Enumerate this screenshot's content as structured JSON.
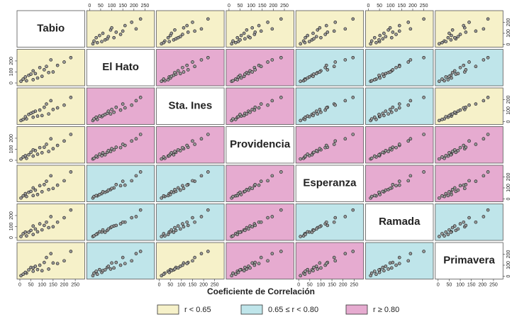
{
  "chart_data": {
    "type": "scatter-matrix",
    "x_label": "Coeficiente de Correlación",
    "xlim": [
      0,
      280
    ],
    "ylim": [
      0,
      280
    ],
    "xticks": [
      0,
      50,
      100,
      150,
      200,
      250
    ],
    "yticks": [
      0,
      100,
      200
    ],
    "point_color": "#9a9a9a",
    "legend": [
      {
        "name": "r < 0.65",
        "color": "#f6f1c9"
      },
      {
        "name": "0.65 ≤ r < 0.80",
        "color": "#bfe5ea"
      },
      {
        "name": "r ≥ 0.80",
        "color": "#e6abd0"
      }
    ],
    "classes": [
      [
        null,
        0,
        0,
        0,
        0,
        0,
        0
      ],
      [
        0,
        null,
        2,
        2,
        1,
        1,
        1
      ],
      [
        0,
        2,
        null,
        2,
        1,
        1,
        0
      ],
      [
        0,
        2,
        2,
        null,
        2,
        2,
        2
      ],
      [
        0,
        1,
        1,
        2,
        null,
        2,
        2
      ],
      [
        0,
        1,
        1,
        2,
        1,
        null,
        1
      ],
      [
        0,
        1,
        0,
        2,
        2,
        1,
        null
      ]
    ],
    "variables": [
      {
        "name": "Tabio",
        "values": [
          5,
          30,
          15,
          60,
          25,
          80,
          40,
          100,
          50,
          130,
          70,
          60,
          150,
          90,
          110,
          170,
          120,
          200,
          140,
          230
        ]
      },
      {
        "name": "El Hato",
        "values": [
          15,
          20,
          35,
          30,
          55,
          45,
          70,
          60,
          80,
          95,
          85,
          110,
          100,
          140,
          120,
          160,
          150,
          190,
          210,
          230
        ]
      },
      {
        "name": "Sta. Ines",
        "values": [
          10,
          25,
          20,
          40,
          45,
          50,
          65,
          55,
          75,
          70,
          95,
          85,
          110,
          105,
          130,
          125,
          160,
          150,
          190,
          220
        ]
      },
      {
        "name": "Providencia",
        "values": [
          12,
          18,
          30,
          38,
          42,
          55,
          50,
          68,
          72,
          80,
          88,
          95,
          105,
          115,
          118,
          135,
          145,
          175,
          195,
          235
        ]
      },
      {
        "name": "Esperanza",
        "values": [
          8,
          22,
          28,
          30,
          48,
          40,
          60,
          65,
          68,
          85,
          80,
          100,
          95,
          120,
          130,
          125,
          160,
          165,
          210,
          245
        ]
      },
      {
        "name": "Ramada",
        "values": [
          10,
          15,
          35,
          28,
          50,
          52,
          48,
          70,
          65,
          90,
          78,
          105,
          98,
          125,
          110,
          140,
          140,
          180,
          190,
          250
        ]
      },
      {
        "name": "Primavera",
        "values": [
          5,
          28,
          18,
          45,
          35,
          60,
          58,
          50,
          80,
          65,
          90,
          75,
          120,
          100,
          125,
          115,
          170,
          140,
          205,
          225
        ]
      }
    ]
  }
}
